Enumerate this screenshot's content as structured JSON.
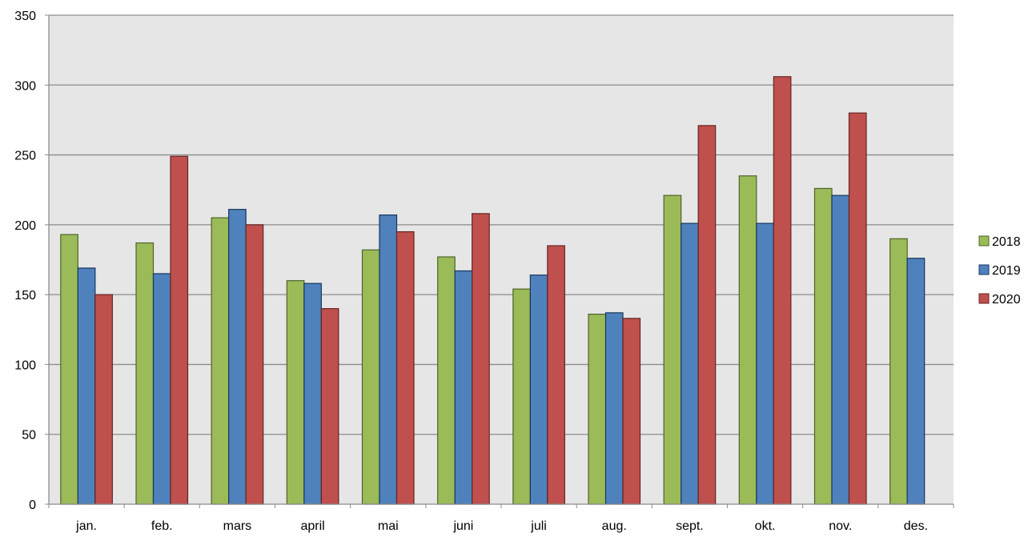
{
  "chart_data": {
    "type": "bar",
    "categories": [
      "jan.",
      "feb.",
      "mars",
      "april",
      "mai",
      "juni",
      "juli",
      "aug.",
      "sept.",
      "okt.",
      "nov.",
      "des."
    ],
    "series": [
      {
        "name": "2018",
        "color": "#9BBB59",
        "stroke": "#4F6228",
        "values": [
          193,
          187,
          205,
          160,
          182,
          177,
          154,
          136,
          221,
          235,
          226,
          190
        ]
      },
      {
        "name": "2019",
        "color": "#4F81BD",
        "stroke": "#17375E",
        "values": [
          169,
          165,
          211,
          158,
          207,
          167,
          164,
          137,
          201,
          201,
          221,
          176
        ]
      },
      {
        "name": "2020",
        "color": "#C0504D",
        "stroke": "#632523",
        "values": [
          150,
          249,
          200,
          140,
          195,
          208,
          185,
          133,
          271,
          306,
          280,
          null
        ]
      }
    ],
    "title": "",
    "xlabel": "",
    "ylabel": "",
    "ylim": [
      0,
      350
    ],
    "yticks": [
      0,
      50,
      100,
      150,
      200,
      250,
      300,
      350
    ],
    "grid": true,
    "plot_background": "#E6E6E6",
    "legend": "right"
  }
}
